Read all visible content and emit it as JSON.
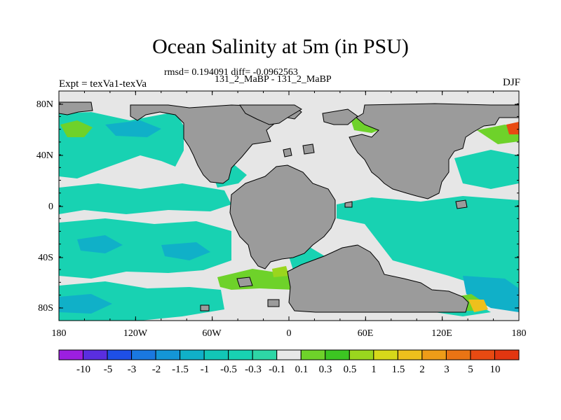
{
  "title": "Ocean Salinity at 5m (in PSU)",
  "stats": "rmsd= 0.194091 diff= -0.0962563",
  "experiment_pair": "131_2_MaBP - 131_2_MaBP",
  "experiment_label": "Expt = texVa1-texVa",
  "season": "DJF",
  "map": {
    "lon_ticks": [
      "180",
      "120W",
      "60W",
      "0",
      "60E",
      "120E",
      "180"
    ],
    "lat_ticks": [
      "80N",
      "40N",
      "0",
      "40S",
      "80S"
    ],
    "land_color": "#9b9b9b",
    "ocean_background_color": "#e6e6e6"
  },
  "colorbar": {
    "labels": [
      "-10",
      "-5",
      "-3",
      "-2",
      "-1.5",
      "-1",
      "-0.5",
      "-0.3",
      "-0.1",
      "0.1",
      "0.3",
      "0.5",
      "1",
      "1.5",
      "2",
      "3",
      "5",
      "10"
    ],
    "colors": [
      "#9c1fe0",
      "#5a2ee0",
      "#1e4fe6",
      "#1a78e0",
      "#1496d6",
      "#10b0c8",
      "#12c6b6",
      "#18d2b2",
      "#2ed6a6",
      "#e8e8e8",
      "#6ed22a",
      "#3cc622",
      "#9ad61e",
      "#d6d81a",
      "#eec01c",
      "#ee9c18",
      "#ea7414",
      "#e84a12",
      "#e23610"
    ]
  }
}
